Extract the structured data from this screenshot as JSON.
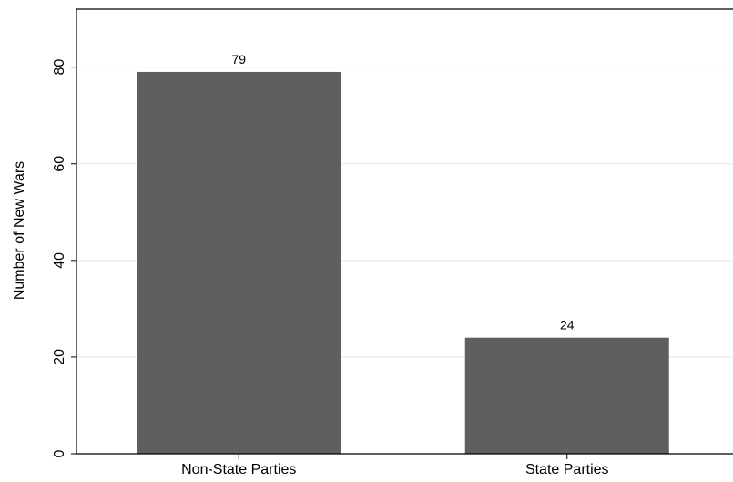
{
  "chart_data": {
    "type": "bar",
    "categories": [
      "Non-State Parties",
      "State Parties"
    ],
    "values": [
      79,
      24
    ],
    "data_labels": [
      "79",
      "24"
    ],
    "ylabel": "Number of New Wars",
    "xlabel": "",
    "ylim": [
      0,
      92
    ],
    "yticks": [
      0,
      20,
      40,
      60,
      80
    ],
    "ytick_labels": [
      "0",
      "20",
      "40",
      "60",
      "80"
    ],
    "grid": true,
    "legend": "none",
    "colors": {
      "bar": "#5f5f5f",
      "grid": "#e6e6e6",
      "axis": "#000000",
      "background": "#ffffff"
    }
  }
}
